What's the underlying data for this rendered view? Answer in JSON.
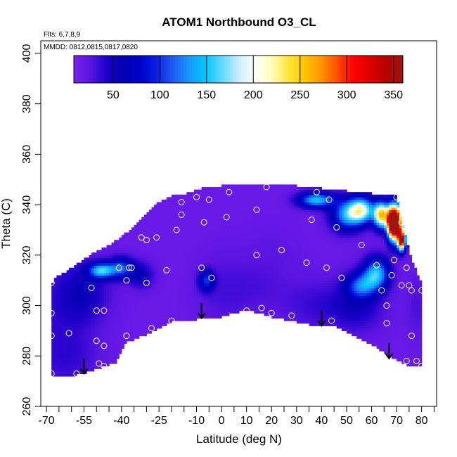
{
  "chart_data": {
    "type": "heatmap",
    "title": "ATOM1 Northbound O3_CL",
    "annotations": [
      "Flts: 6,7,8,9",
      "MMDD: 0812,0815,0817,0820"
    ],
    "xlabel": "Latitude (deg N)",
    "ylabel": "Theta (C)",
    "xlim": [
      -72,
      86
    ],
    "ylim": [
      260,
      405
    ],
    "x_ticks": [
      -70,
      -55,
      -40,
      -25,
      -10,
      0,
      10,
      20,
      30,
      40,
      50,
      60,
      70,
      80
    ],
    "x_tick_labels": [
      "-70",
      "-55",
      "-40",
      "-25",
      "-10",
      "0",
      "10",
      "20",
      "30",
      "40",
      "50",
      "60",
      "70",
      "80"
    ],
    "x_minor_ticks": [
      -65,
      -60,
      -50,
      -45,
      -35,
      -30,
      -20,
      -15,
      -5,
      5,
      15,
      25,
      35,
      45,
      55,
      65,
      75,
      85
    ],
    "y_ticks": [
      260,
      280,
      300,
      320,
      340,
      360,
      380,
      400
    ],
    "y_tick_labels": [
      "260",
      "280",
      "300",
      "320",
      "340",
      "360",
      "380",
      "400"
    ],
    "colorbar": {
      "range": [
        8,
        360
      ],
      "ticks": [
        50,
        100,
        150,
        200,
        250,
        300,
        350
      ],
      "tick_labels": [
        "50",
        "100",
        "150",
        "200",
        "250",
        "300",
        "350"
      ],
      "colors": [
        "#7b22f0",
        "#5a14e0",
        "#1c00c8",
        "#0000b0",
        "#0000c8",
        "#0a1ee0",
        "#1e5af0",
        "#1a96ff",
        "#00c8ff",
        "#60d8ff",
        "#c8ecff",
        "#ffffff",
        "#ffffc0",
        "#ffe640",
        "#ffc800",
        "#ff9600",
        "#ff5000",
        "#ff0000",
        "#dc0000",
        "#b40000",
        "#a01414"
      ]
    },
    "domain_upper": [
      [
        -68,
        308
      ],
      [
        -66,
        311
      ],
      [
        -62,
        313
      ],
      [
        -58,
        316
      ],
      [
        -52,
        320
      ],
      [
        -46,
        323
      ],
      [
        -40,
        327
      ],
      [
        -36,
        330
      ],
      [
        -30,
        336
      ],
      [
        -26,
        340
      ],
      [
        -20,
        343
      ],
      [
        -14,
        344
      ],
      [
        -8,
        346
      ],
      [
        0,
        347
      ],
      [
        10,
        348
      ],
      [
        20,
        348
      ],
      [
        30,
        347
      ],
      [
        40,
        346
      ],
      [
        50,
        345
      ],
      [
        60,
        344
      ],
      [
        70,
        343
      ],
      [
        72,
        333
      ],
      [
        74,
        326
      ],
      [
        76,
        318
      ],
      [
        78,
        313
      ],
      [
        80,
        308
      ]
    ],
    "domain_lower": [
      [
        -68,
        272
      ],
      [
        -62,
        272
      ],
      [
        -54,
        274
      ],
      [
        -48,
        276
      ],
      [
        -42,
        278
      ],
      [
        -38,
        286
      ],
      [
        -30,
        289
      ],
      [
        -20,
        294
      ],
      [
        -10,
        295
      ],
      [
        0,
        296
      ],
      [
        10,
        299
      ],
      [
        20,
        296
      ],
      [
        30,
        294
      ],
      [
        40,
        292
      ],
      [
        46,
        292
      ],
      [
        52,
        289
      ],
      [
        60,
        285
      ],
      [
        68,
        280
      ],
      [
        74,
        277
      ],
      [
        80,
        276
      ]
    ],
    "features": [
      {
        "x": -68,
        "y": 290,
        "value": 35,
        "sx": 14,
        "sy": 30
      },
      {
        "x": -58,
        "y": 280,
        "value": 28,
        "sx": 10,
        "sy": 10
      },
      {
        "x": -55,
        "y": 305,
        "value": 50,
        "sx": 10,
        "sy": 12
      },
      {
        "x": -48,
        "y": 314,
        "value": 150,
        "sx": 5,
        "sy": 3
      },
      {
        "x": -40,
        "y": 315,
        "value": 110,
        "sx": 5,
        "sy": 4
      },
      {
        "x": -32,
        "y": 312,
        "value": 55,
        "sx": 5,
        "sy": 5
      },
      {
        "x": -6,
        "y": 310,
        "value": 95,
        "sx": 3,
        "sy": 4
      },
      {
        "x": 0,
        "y": 306,
        "value": 30,
        "sx": 10,
        "sy": 15
      },
      {
        "x": 12,
        "y": 306,
        "value": 25,
        "sx": 10,
        "sy": 10
      },
      {
        "x": 20,
        "y": 315,
        "value": 25,
        "sx": 12,
        "sy": 15
      },
      {
        "x": 30,
        "y": 302,
        "value": 20,
        "sx": 12,
        "sy": 8
      },
      {
        "x": 40,
        "y": 300,
        "value": 35,
        "sx": 14,
        "sy": 10
      },
      {
        "x": 55,
        "y": 300,
        "value": 45,
        "sx": 10,
        "sy": 10
      },
      {
        "x": 62,
        "y": 313,
        "value": 145,
        "sx": 5,
        "sy": 6
      },
      {
        "x": 56,
        "y": 308,
        "value": 110,
        "sx": 6,
        "sy": 5
      },
      {
        "x": 78,
        "y": 300,
        "value": 30,
        "sx": 4,
        "sy": 12
      },
      {
        "x": 38,
        "y": 342,
        "value": 150,
        "sx": 7,
        "sy": 3
      },
      {
        "x": 50,
        "y": 336,
        "value": 130,
        "sx": 6,
        "sy": 6
      },
      {
        "x": 56,
        "y": 338,
        "value": 190,
        "sx": 5,
        "sy": 5
      },
      {
        "x": 64,
        "y": 336,
        "value": 250,
        "sx": 3,
        "sy": 5
      },
      {
        "x": 68,
        "y": 333,
        "value": 290,
        "sx": 2,
        "sy": 6
      },
      {
        "x": 70,
        "y": 333,
        "value": 340,
        "sx": 2.5,
        "sy": 7
      },
      {
        "x": 72,
        "y": 326,
        "value": 330,
        "sx": 1.5,
        "sy": 4
      }
    ],
    "base_value": 18,
    "sample_points": [
      [
        -68,
        309
      ],
      [
        -68,
        297
      ],
      [
        -68,
        288
      ],
      [
        -68,
        273
      ],
      [
        -61,
        289
      ],
      [
        -58,
        273
      ],
      [
        -52,
        307
      ],
      [
        -50,
        298
      ],
      [
        -50,
        286
      ],
      [
        -47,
        298
      ],
      [
        -49,
        277
      ],
      [
        -47,
        284
      ],
      [
        -47,
        276
      ],
      [
        -41,
        315
      ],
      [
        -37,
        315
      ],
      [
        -38,
        310
      ],
      [
        -38,
        288
      ],
      [
        -36,
        315
      ],
      [
        -32,
        327
      ],
      [
        -30,
        326
      ],
      [
        -30,
        309
      ],
      [
        -28,
        291
      ],
      [
        -26,
        327
      ],
      [
        -22,
        314
      ],
      [
        -20,
        294
      ],
      [
        -18,
        330
      ],
      [
        -16,
        336
      ],
      [
        -16,
        341
      ],
      [
        -10,
        343
      ],
      [
        -8,
        315
      ],
      [
        -7,
        333
      ],
      [
        -5,
        342
      ],
      [
        -4,
        311
      ],
      [
        2,
        335
      ],
      [
        3,
        345
      ],
      [
        10,
        298
      ],
      [
        14,
        320
      ],
      [
        16,
        299
      ],
      [
        14,
        338
      ],
      [
        18,
        347
      ],
      [
        20,
        297
      ],
      [
        24,
        322
      ],
      [
        28,
        296
      ],
      [
        34,
        317
      ],
      [
        36,
        334
      ],
      [
        38,
        345
      ],
      [
        42,
        315
      ],
      [
        43,
        342
      ],
      [
        44,
        294
      ],
      [
        46,
        331
      ],
      [
        48,
        311
      ],
      [
        52,
        337
      ],
      [
        55,
        339
      ],
      [
        56,
        324
      ],
      [
        62,
        316
      ],
      [
        64,
        306
      ],
      [
        66,
        300
      ],
      [
        66,
        293
      ],
      [
        68,
        312
      ],
      [
        69,
        318
      ],
      [
        70,
        343
      ],
      [
        72,
        333
      ],
      [
        72,
        308
      ],
      [
        74,
        278
      ],
      [
        74,
        315
      ],
      [
        75,
        308
      ],
      [
        76,
        306
      ],
      [
        76,
        288
      ],
      [
        78,
        278
      ],
      [
        80,
        306
      ],
      [
        80,
        276
      ]
    ],
    "arrows": [
      [
        -55,
        279
      ],
      [
        -8,
        301
      ],
      [
        40,
        298
      ],
      [
        67,
        285
      ]
    ]
  }
}
